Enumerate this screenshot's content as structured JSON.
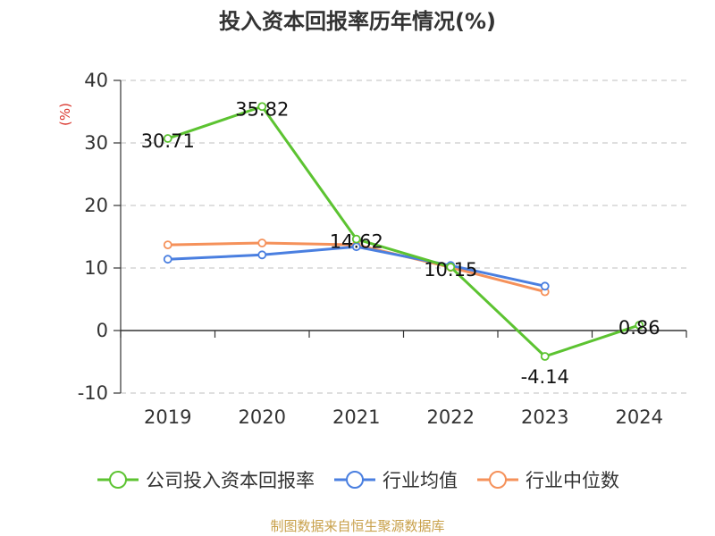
{
  "title": "投入资本回报率历年情况(%)",
  "source_text": "制图数据来自恒生聚源数据库",
  "colors": {
    "company": "#5cc331",
    "industry_avg": "#4a7fe0",
    "industry_median": "#f5915a",
    "axis_unit": "#d9342b",
    "source": "#c8a04a"
  },
  "chart_data": {
    "type": "line",
    "title": "投入资本回报率历年情况(%)",
    "ylabel": "(%)",
    "xlabel": "",
    "categories": [
      "2019",
      "2020",
      "2021",
      "2022",
      "2023",
      "2024"
    ],
    "ylim": [
      -10,
      40
    ],
    "yticks": [
      -10,
      0,
      10,
      20,
      30,
      40
    ],
    "grid": true,
    "legend_position": "bottom",
    "series": [
      {
        "name": "公司投入资本回报率",
        "values": [
          30.71,
          35.82,
          14.62,
          10.15,
          -4.14,
          0.86
        ],
        "labels": [
          "30.71",
          "35.82",
          "14.62",
          "10.15",
          "-4.14",
          "0.86"
        ],
        "color": "#5cc331"
      },
      {
        "name": "行业均值",
        "values": [
          11.4,
          12.1,
          13.4,
          10.4,
          7.1,
          null
        ],
        "color": "#4a7fe0"
      },
      {
        "name": "行业中位数",
        "values": [
          13.7,
          14.0,
          13.7,
          10.1,
          6.2,
          null
        ],
        "color": "#f5915a"
      }
    ]
  }
}
